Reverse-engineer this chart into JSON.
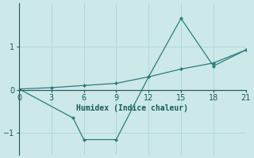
{
  "xlabel": "Humidex (Indice chaleur)",
  "ylabel": "",
  "background_color": "#cce8e8",
  "grid_color": "#afd4d4",
  "line_color": "#2a7d7d",
  "marker_color": "#2a7d7d",
  "line1_x": [
    0,
    3,
    6,
    9,
    12,
    15,
    18,
    21
  ],
  "line1_y": [
    0.02,
    0.05,
    0.1,
    0.15,
    0.3,
    0.48,
    0.62,
    0.92
  ],
  "line2_x": [
    0,
    5,
    6,
    9,
    12,
    15,
    18,
    21
  ],
  "line2_y": [
    0.02,
    -0.65,
    -1.15,
    -1.15,
    0.3,
    1.65,
    0.55,
    0.92
  ],
  "xlim": [
    0,
    21
  ],
  "ylim": [
    -1.5,
    2.0
  ],
  "xticks": [
    0,
    3,
    6,
    9,
    12,
    15,
    18,
    21
  ],
  "yticks": [
    -1,
    0,
    1
  ],
  "figsize": [
    3.2,
    2.0
  ],
  "dpi": 100
}
